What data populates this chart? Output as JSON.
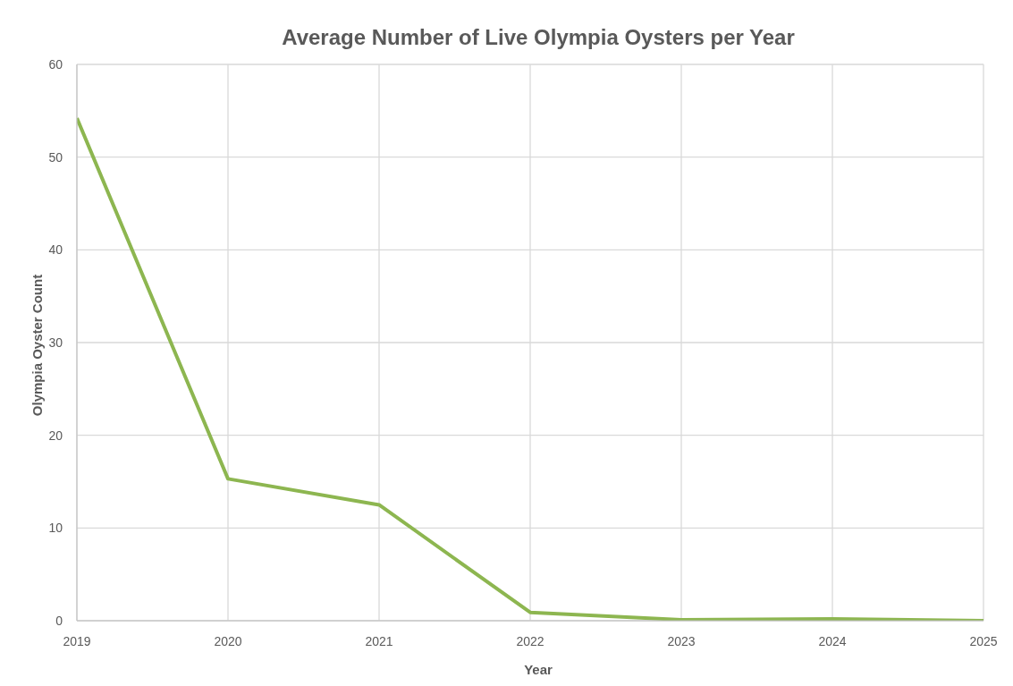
{
  "chart_data": {
    "type": "line",
    "title": "Average Number of Live Olympia Oysters per Year",
    "xlabel": "Year",
    "ylabel": "Olympia Oyster Count",
    "x": [
      2019,
      2020,
      2021,
      2022,
      2023,
      2024,
      2025
    ],
    "series": [
      {
        "color": "#8db650",
        "values": [
          54.2,
          15.3,
          12.5,
          0.9,
          0.1,
          0.2,
          0
        ]
      }
    ],
    "xlim": [
      2019,
      2025
    ],
    "xticks": [
      2019,
      2020,
      2021,
      2022,
      2023,
      2024,
      2025
    ],
    "ylim": [
      0,
      60
    ],
    "yticks": [
      0,
      10,
      20,
      30,
      40,
      50,
      60
    ],
    "grid": true,
    "legend": false,
    "marker": "none",
    "line_style": "solid"
  }
}
